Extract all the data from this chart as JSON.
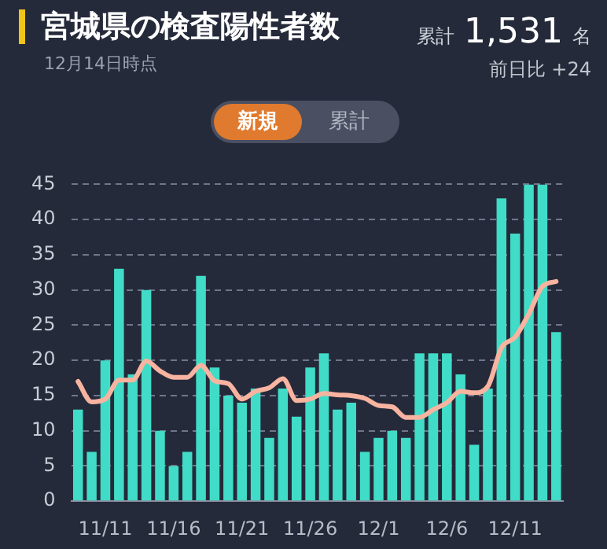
{
  "chart_data": {
    "type": "bar",
    "title": "宮城県の検査陽性者数",
    "subtitle": "12月14日時点",
    "annotations": [
      "累計",
      "1,531",
      "名",
      "前日比 +24",
      "新規",
      "累計"
    ],
    "categories": [
      null,
      null,
      "11/11",
      null,
      null,
      null,
      null,
      "11/16",
      null,
      null,
      null,
      null,
      "11/21",
      null,
      null,
      null,
      null,
      "11/26",
      null,
      null,
      null,
      null,
      "12/1",
      null,
      null,
      null,
      null,
      "12/6",
      null,
      null,
      null,
      null,
      "12/11",
      null,
      null,
      null
    ],
    "series": [
      {
        "color": "#40dcc8",
        "values": [
          13,
          7,
          20,
          33,
          18,
          30,
          10,
          5,
          7,
          32,
          19,
          15,
          14,
          16,
          9,
          16,
          12,
          19,
          21,
          13,
          14,
          7,
          9,
          10,
          9,
          21,
          21,
          21,
          18,
          8,
          16,
          43,
          38,
          45,
          45,
          24
        ]
      },
      {
        "type": "line",
        "color": "#f8b4a0",
        "values": [
          17,
          14.1,
          14.5,
          17.2,
          17.2,
          19.9,
          18.5,
          17.6,
          17.6,
          19.3,
          17.1,
          16.7,
          14.5,
          15.6,
          16.1,
          17.4,
          14.3,
          14.5,
          15.3,
          15.1,
          15,
          14.6,
          13.6,
          13.4,
          11.9,
          11.9,
          13,
          14,
          15.6,
          15.4,
          16.3,
          21.8,
          23.3,
          26.6,
          30.5,
          31.2
        ]
      }
    ],
    "ylim": [
      0,
      45
    ],
    "yticks": [
      0,
      5,
      10,
      15,
      20,
      25,
      30,
      35,
      40,
      45
    ],
    "grid": "y",
    "legend": false,
    "marker": "none",
    "line_style": "solid"
  }
}
